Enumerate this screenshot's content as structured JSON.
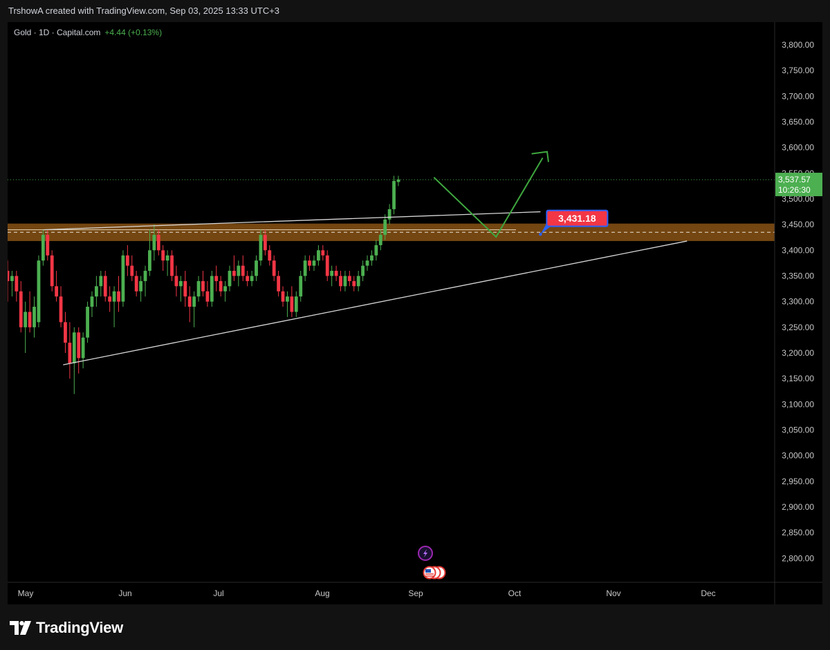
{
  "header": {
    "caption": "TrshowA created with TradingView.com, Sep 03, 2025 13:33 UTC+3"
  },
  "legend": {
    "symbol": "Gold · 1D · Capital.com",
    "change": "+4.44 (+0.13%)"
  },
  "price_badge": {
    "price": "3,537.57",
    "countdown": "10:26:30",
    "color": "#4caf50"
  },
  "annotation": {
    "label": "3,431.18",
    "color": "#f23645"
  },
  "footer": {
    "brand": "TradingView"
  },
  "colors": {
    "up": "#4caf50",
    "down": "#f23645",
    "zone": "#7a4a12",
    "arrow": "#3fa83f",
    "trendline": "#d9d9d9",
    "axis_text": "#c8c8c8"
  },
  "icons": [
    "lightning-icon",
    "us-flag-icon"
  ],
  "chart_data": {
    "type": "candlestick",
    "title": "Gold · 1D · Capital.com",
    "ylim": [
      2750,
      3850
    ],
    "y_ticks": [
      "3,800.00",
      "3,750.00",
      "3,700.00",
      "3,650.00",
      "3,600.00",
      "3,550.00",
      "3,500.00",
      "3,450.00",
      "3,400.00",
      "3,350.00",
      "3,300.00",
      "3,250.00",
      "3,200.00",
      "3,150.00",
      "3,100.00",
      "3,050.00",
      "3,000.00",
      "2,950.00",
      "2,900.00",
      "2,850.00",
      "2,800.00"
    ],
    "x_ticks": [
      "May",
      "Jun",
      "Jul",
      "Aug",
      "Sep",
      "Oct",
      "Nov",
      "Dec"
    ],
    "last_price": 3537.57,
    "resistance_zone": [
      3418,
      3452
    ],
    "candles": [
      {
        "o": 3360,
        "h": 3380,
        "l": 3300,
        "c": 3340
      },
      {
        "o": 3340,
        "h": 3360,
        "l": 3310,
        "c": 3350
      },
      {
        "o": 3350,
        "h": 3360,
        "l": 3300,
        "c": 3320
      },
      {
        "o": 3320,
        "h": 3340,
        "l": 3240,
        "c": 3250
      },
      {
        "o": 3250,
        "h": 3300,
        "l": 3200,
        "c": 3280
      },
      {
        "o": 3280,
        "h": 3320,
        "l": 3240,
        "c": 3250
      },
      {
        "o": 3250,
        "h": 3310,
        "l": 3230,
        "c": 3290
      },
      {
        "o": 3260,
        "h": 3390,
        "l": 3250,
        "c": 3380
      },
      {
        "o": 3380,
        "h": 3440,
        "l": 3370,
        "c": 3430
      },
      {
        "o": 3430,
        "h": 3440,
        "l": 3380,
        "c": 3390
      },
      {
        "o": 3390,
        "h": 3400,
        "l": 3320,
        "c": 3330
      },
      {
        "o": 3330,
        "h": 3360,
        "l": 3300,
        "c": 3310
      },
      {
        "o": 3310,
        "h": 3330,
        "l": 3250,
        "c": 3260
      },
      {
        "o": 3260,
        "h": 3280,
        "l": 3200,
        "c": 3220
      },
      {
        "o": 3220,
        "h": 3260,
        "l": 3150,
        "c": 3180
      },
      {
        "o": 3180,
        "h": 3250,
        "l": 3120,
        "c": 3240
      },
      {
        "o": 3240,
        "h": 3250,
        "l": 3160,
        "c": 3190
      },
      {
        "o": 3190,
        "h": 3240,
        "l": 3170,
        "c": 3230
      },
      {
        "o": 3230,
        "h": 3300,
        "l": 3220,
        "c": 3290
      },
      {
        "o": 3290,
        "h": 3320,
        "l": 3270,
        "c": 3310
      },
      {
        "o": 3310,
        "h": 3350,
        "l": 3290,
        "c": 3330
      },
      {
        "o": 3330,
        "h": 3360,
        "l": 3310,
        "c": 3350
      },
      {
        "o": 3350,
        "h": 3360,
        "l": 3300,
        "c": 3310
      },
      {
        "o": 3310,
        "h": 3330,
        "l": 3280,
        "c": 3300
      },
      {
        "o": 3300,
        "h": 3330,
        "l": 3250,
        "c": 3320
      },
      {
        "o": 3320,
        "h": 3350,
        "l": 3280,
        "c": 3300
      },
      {
        "o": 3300,
        "h": 3400,
        "l": 3290,
        "c": 3390
      },
      {
        "o": 3390,
        "h": 3410,
        "l": 3350,
        "c": 3370
      },
      {
        "o": 3370,
        "h": 3390,
        "l": 3340,
        "c": 3350
      },
      {
        "o": 3350,
        "h": 3360,
        "l": 3310,
        "c": 3320
      },
      {
        "o": 3320,
        "h": 3350,
        "l": 3300,
        "c": 3340
      },
      {
        "o": 3340,
        "h": 3370,
        "l": 3310,
        "c": 3360
      },
      {
        "o": 3360,
        "h": 3440,
        "l": 3350,
        "c": 3400
      },
      {
        "o": 3400,
        "h": 3450,
        "l": 3380,
        "c": 3430
      },
      {
        "o": 3430,
        "h": 3440,
        "l": 3390,
        "c": 3400
      },
      {
        "o": 3400,
        "h": 3410,
        "l": 3360,
        "c": 3380
      },
      {
        "o": 3380,
        "h": 3400,
        "l": 3350,
        "c": 3390
      },
      {
        "o": 3390,
        "h": 3400,
        "l": 3340,
        "c": 3350
      },
      {
        "o": 3350,
        "h": 3370,
        "l": 3310,
        "c": 3330
      },
      {
        "o": 3330,
        "h": 3350,
        "l": 3300,
        "c": 3340
      },
      {
        "o": 3340,
        "h": 3360,
        "l": 3290,
        "c": 3310
      },
      {
        "o": 3310,
        "h": 3330,
        "l": 3260,
        "c": 3290
      },
      {
        "o": 3290,
        "h": 3320,
        "l": 3250,
        "c": 3310
      },
      {
        "o": 3310,
        "h": 3350,
        "l": 3300,
        "c": 3340
      },
      {
        "o": 3340,
        "h": 3360,
        "l": 3310,
        "c": 3320
      },
      {
        "o": 3320,
        "h": 3340,
        "l": 3290,
        "c": 3300
      },
      {
        "o": 3300,
        "h": 3360,
        "l": 3290,
        "c": 3350
      },
      {
        "o": 3350,
        "h": 3370,
        "l": 3320,
        "c": 3340
      },
      {
        "o": 3340,
        "h": 3350,
        "l": 3310,
        "c": 3320
      },
      {
        "o": 3320,
        "h": 3340,
        "l": 3300,
        "c": 3330
      },
      {
        "o": 3330,
        "h": 3370,
        "l": 3320,
        "c": 3360
      },
      {
        "o": 3360,
        "h": 3390,
        "l": 3340,
        "c": 3350
      },
      {
        "o": 3350,
        "h": 3380,
        "l": 3330,
        "c": 3370
      },
      {
        "o": 3370,
        "h": 3390,
        "l": 3340,
        "c": 3350
      },
      {
        "o": 3350,
        "h": 3360,
        "l": 3330,
        "c": 3340
      },
      {
        "o": 3340,
        "h": 3360,
        "l": 3330,
        "c": 3350
      },
      {
        "o": 3350,
        "h": 3390,
        "l": 3340,
        "c": 3380
      },
      {
        "o": 3380,
        "h": 3440,
        "l": 3370,
        "c": 3430
      },
      {
        "o": 3430,
        "h": 3440,
        "l": 3390,
        "c": 3400
      },
      {
        "o": 3400,
        "h": 3410,
        "l": 3370,
        "c": 3380
      },
      {
        "o": 3380,
        "h": 3390,
        "l": 3340,
        "c": 3350
      },
      {
        "o": 3350,
        "h": 3360,
        "l": 3310,
        "c": 3320
      },
      {
        "o": 3320,
        "h": 3330,
        "l": 3290,
        "c": 3300
      },
      {
        "o": 3300,
        "h": 3320,
        "l": 3270,
        "c": 3310
      },
      {
        "o": 3310,
        "h": 3330,
        "l": 3270,
        "c": 3280
      },
      {
        "o": 3280,
        "h": 3320,
        "l": 3270,
        "c": 3310
      },
      {
        "o": 3310,
        "h": 3360,
        "l": 3300,
        "c": 3350
      },
      {
        "o": 3350,
        "h": 3390,
        "l": 3340,
        "c": 3380
      },
      {
        "o": 3380,
        "h": 3390,
        "l": 3360,
        "c": 3370
      },
      {
        "o": 3370,
        "h": 3390,
        "l": 3360,
        "c": 3380
      },
      {
        "o": 3380,
        "h": 3410,
        "l": 3370,
        "c": 3400
      },
      {
        "o": 3400,
        "h": 3410,
        "l": 3380,
        "c": 3390
      },
      {
        "o": 3390,
        "h": 3400,
        "l": 3340,
        "c": 3350
      },
      {
        "o": 3350,
        "h": 3370,
        "l": 3330,
        "c": 3360
      },
      {
        "o": 3360,
        "h": 3370,
        "l": 3340,
        "c": 3350
      },
      {
        "o": 3350,
        "h": 3360,
        "l": 3320,
        "c": 3330
      },
      {
        "o": 3330,
        "h": 3360,
        "l": 3320,
        "c": 3350
      },
      {
        "o": 3350,
        "h": 3360,
        "l": 3330,
        "c": 3340
      },
      {
        "o": 3340,
        "h": 3350,
        "l": 3320,
        "c": 3330
      },
      {
        "o": 3330,
        "h": 3360,
        "l": 3320,
        "c": 3350
      },
      {
        "o": 3350,
        "h": 3380,
        "l": 3340,
        "c": 3370
      },
      {
        "o": 3370,
        "h": 3390,
        "l": 3360,
        "c": 3380
      },
      {
        "o": 3380,
        "h": 3400,
        "l": 3370,
        "c": 3390
      },
      {
        "o": 3390,
        "h": 3420,
        "l": 3380,
        "c": 3410
      },
      {
        "o": 3410,
        "h": 3440,
        "l": 3400,
        "c": 3430
      },
      {
        "o": 3430,
        "h": 3470,
        "l": 3420,
        "c": 3460
      },
      {
        "o": 3460,
        "h": 3490,
        "l": 3450,
        "c": 3480
      },
      {
        "o": 3480,
        "h": 3545,
        "l": 3470,
        "c": 3535
      },
      {
        "o": 3533,
        "h": 3545,
        "l": 3525,
        "c": 3538
      }
    ]
  }
}
